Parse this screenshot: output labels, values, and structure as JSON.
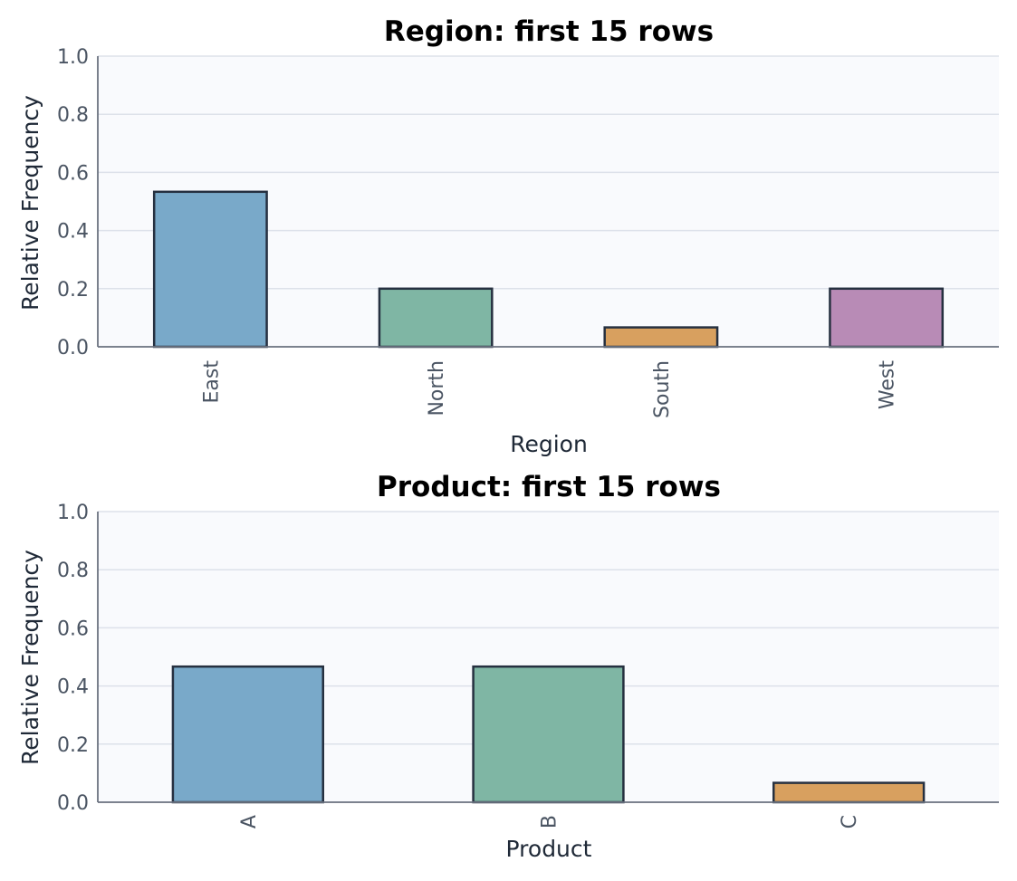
{
  "chart_data": [
    {
      "type": "bar",
      "title": "Region: first 15 rows",
      "xlabel": "Region",
      "ylabel": "Relative Frequency",
      "categories": [
        "East",
        "North",
        "South",
        "West"
      ],
      "values": [
        0.5333,
        0.2,
        0.0667,
        0.2
      ],
      "colors": [
        "#79a9c9",
        "#7fb6a4",
        "#d8a05f",
        "#b88bb6"
      ],
      "ylim": [
        0,
        1.0
      ],
      "yticks": [
        "0.0",
        "0.2",
        "0.4",
        "0.6",
        "0.8",
        "1.0"
      ],
      "grid": true,
      "xtick_rotation": "vertical"
    },
    {
      "type": "bar",
      "title": "Product: first 15 rows",
      "xlabel": "Product",
      "ylabel": "Relative Frequency",
      "categories": [
        "A",
        "B",
        "C"
      ],
      "values": [
        0.4667,
        0.4667,
        0.0667
      ],
      "colors": [
        "#79a9c9",
        "#7fb6a4",
        "#d8a05f"
      ],
      "ylim": [
        0,
        1.0
      ],
      "yticks": [
        "0.0",
        "0.2",
        "0.4",
        "0.6",
        "0.8",
        "1.0"
      ],
      "grid": true,
      "xtick_rotation": "vertical"
    }
  ]
}
